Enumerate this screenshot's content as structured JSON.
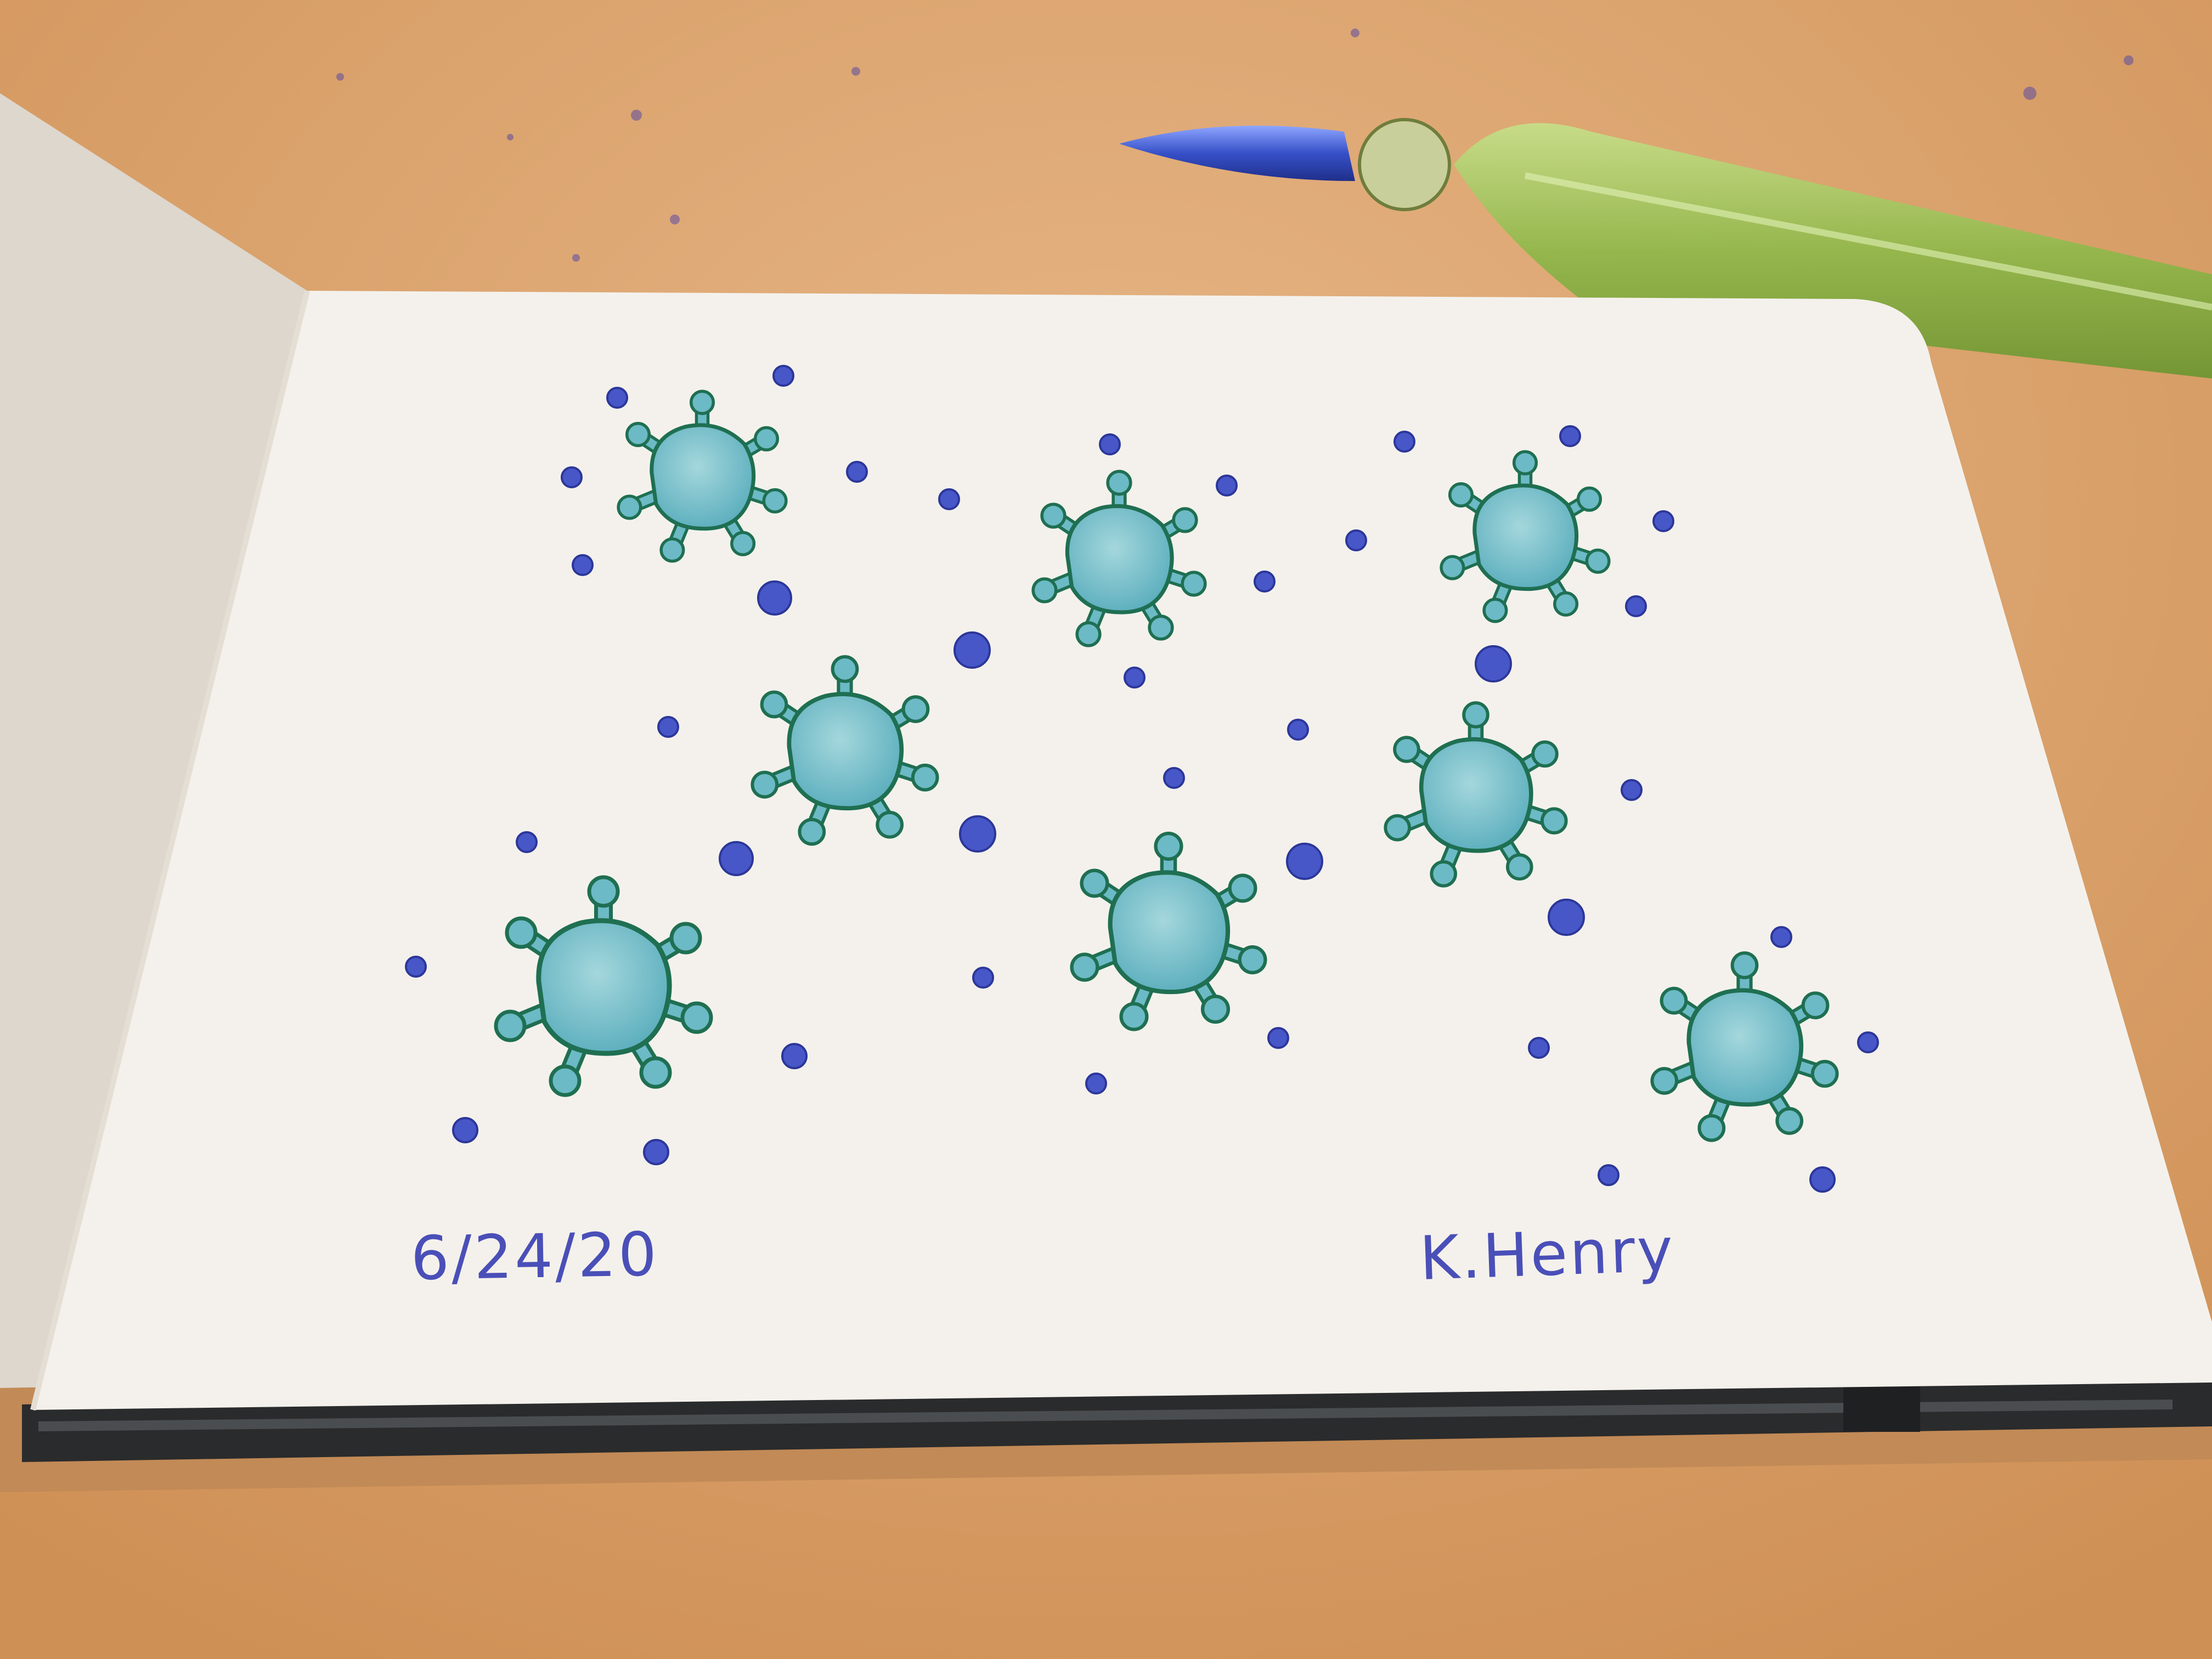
{
  "photo": {
    "subject": "sketchbook-page-with-virus-doodles",
    "colors": {
      "table": "#d89a5e",
      "table_light": "#e3b27e",
      "page": "#f4f1ec",
      "left_page_shadow": "#ddd7cd",
      "binding": "#2a2b2c",
      "virus_fill": "#6cbac6",
      "virus_fill_light": "#a4d7dc",
      "virus_outline": "#1f6f52",
      "dot_blue": "#4757c8",
      "ink_text": "#4a4fb8",
      "pen_glass_green": "#9ec45a",
      "pen_glass_blue": "#3650c8"
    }
  },
  "sketch": {
    "date": "6/24/20",
    "signature": "K.Henry"
  }
}
